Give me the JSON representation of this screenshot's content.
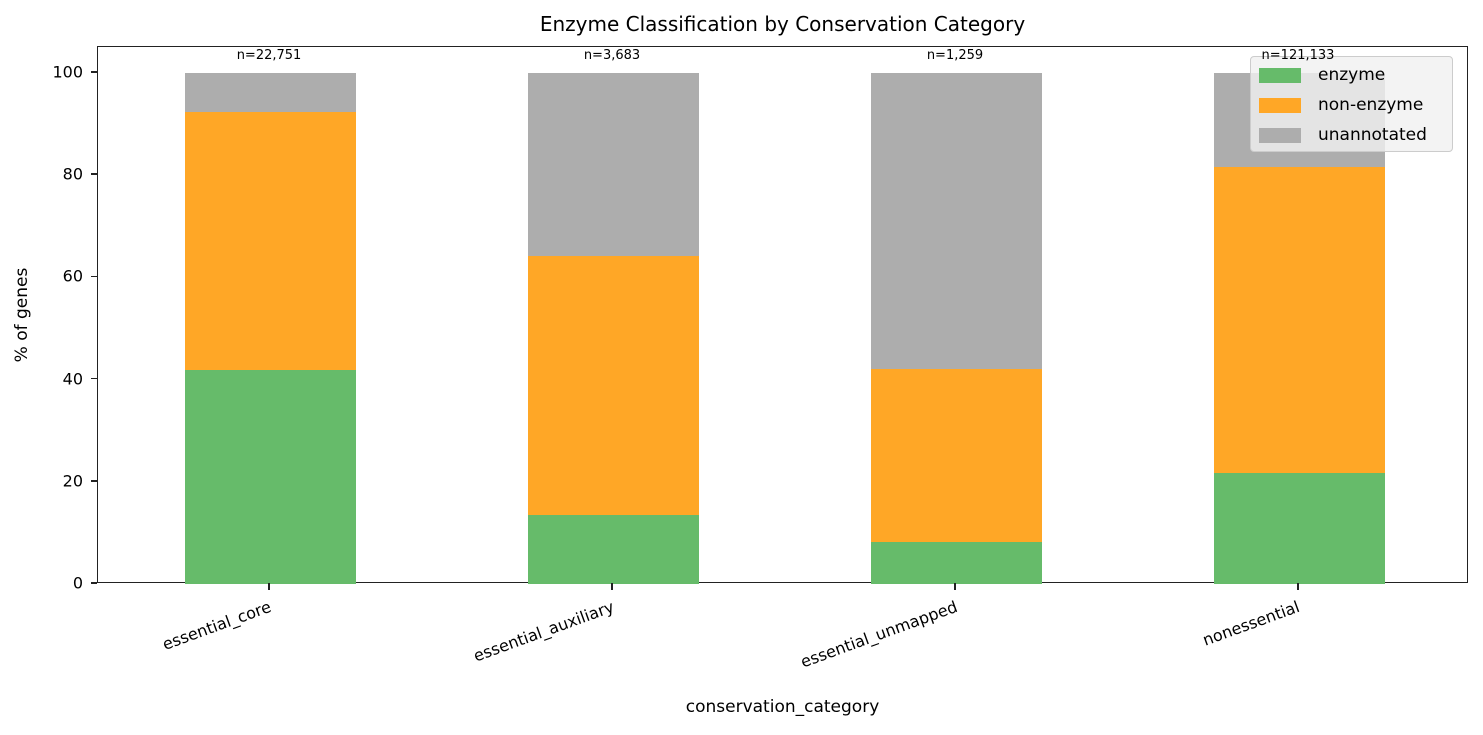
{
  "chart_data": {
    "type": "bar",
    "stacked": true,
    "title": "Enzyme Classification by Conservation Category",
    "xlabel": "conservation_category",
    "ylabel": "% of genes",
    "ylim": [
      0,
      105
    ],
    "yticks": [
      0,
      20,
      40,
      60,
      80,
      100
    ],
    "categories": [
      "essential_core",
      "essential_auxiliary",
      "essential_unmapped",
      "nonessential"
    ],
    "n_labels": [
      "n=22,751",
      "n=3,683",
      "n=1,259",
      "n=121,133"
    ],
    "series": [
      {
        "name": "enzyme",
        "color": "#66bb6a",
        "values": [
          41.9,
          13.5,
          8.2,
          21.7
        ]
      },
      {
        "name": "non-enzyme",
        "color": "#ffa726",
        "values": [
          50.5,
          50.7,
          33.9,
          59.9
        ]
      },
      {
        "name": "unannotated",
        "color": "#adadad",
        "values": [
          7.6,
          35.8,
          57.9,
          18.4
        ]
      }
    ],
    "legend_position": "upper right",
    "grid": false
  },
  "legend": [
    {
      "label": "enzyme",
      "color": "#66bb6a"
    },
    {
      "label": "non-enzyme",
      "color": "#ffa726"
    },
    {
      "label": "unannotated",
      "color": "#adadad"
    }
  ]
}
